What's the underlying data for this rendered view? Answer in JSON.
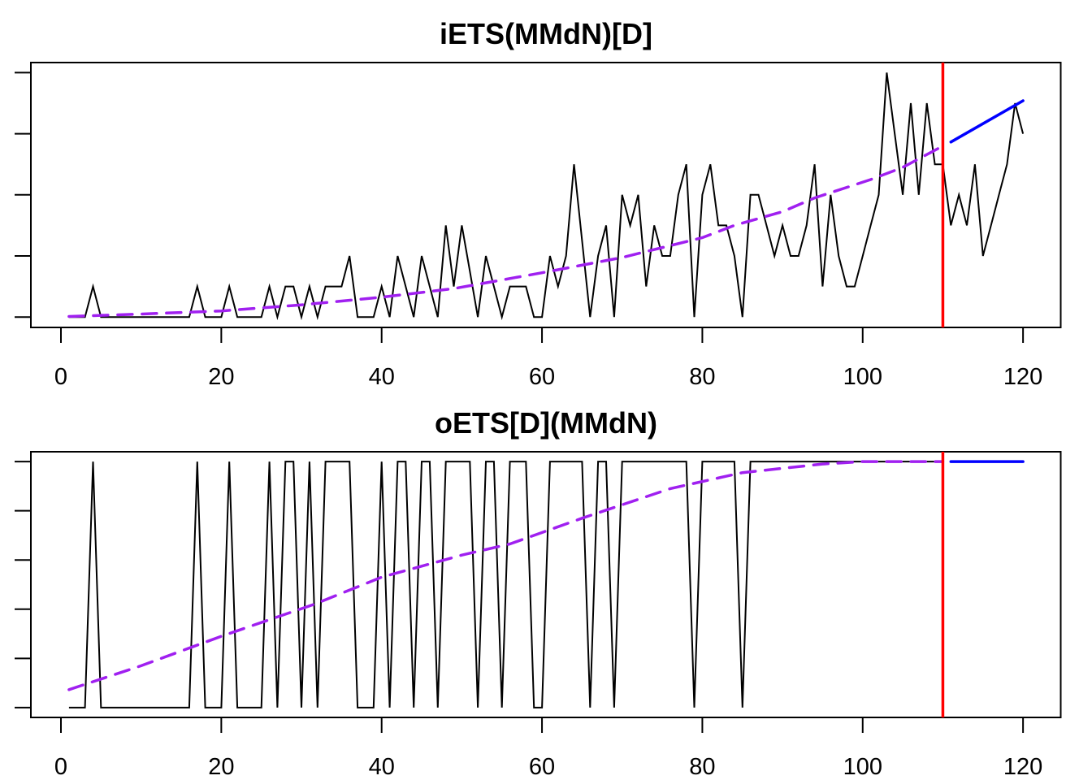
{
  "chart_data": [
    {
      "type": "line",
      "title": "iETS(MMdN)[D]",
      "xlabel": "",
      "ylabel": "",
      "xlim": [
        -3.75,
        124.7
      ],
      "ylim": [
        -0.34,
        8.33
      ],
      "x_ticks": [
        0,
        20,
        40,
        60,
        80,
        100,
        120
      ],
      "x_tick_labels": [
        "0",
        "20",
        "40",
        "60",
        "80",
        "100",
        "120"
      ],
      "y_ticks": [
        0,
        2,
        4,
        6,
        8
      ],
      "y_tick_labels": [
        "",
        "",
        "",
        "",
        ""
      ],
      "grid": false,
      "holdout_start": 110,
      "series": [
        {
          "name": "actuals",
          "style": "solid",
          "color": "#000000",
          "x_start": 1,
          "values": [
            0,
            0,
            0,
            1,
            0,
            0,
            0,
            0,
            0,
            0,
            0,
            0,
            0,
            0,
            0,
            0,
            1,
            0,
            0,
            0,
            1,
            0,
            0,
            0,
            0,
            1,
            0,
            1,
            1,
            0,
            1,
            0,
            1,
            1,
            1,
            2,
            0,
            0,
            0,
            1,
            0,
            2,
            1,
            0,
            2,
            1,
            0,
            3,
            1,
            3,
            1.5,
            0,
            2,
            1,
            0,
            1,
            1,
            1,
            0,
            0,
            2,
            1,
            2,
            5,
            2.5,
            0,
            2,
            3,
            0,
            4,
            3,
            4,
            1,
            3,
            2,
            2,
            4,
            5,
            0,
            4,
            5,
            3,
            3,
            2,
            0,
            4,
            4,
            3,
            2,
            3,
            2,
            2,
            3,
            5,
            1,
            4,
            2,
            1,
            1,
            2,
            3,
            4,
            8,
            6,
            4,
            7,
            4,
            7,
            5,
            5,
            3,
            4,
            3,
            5,
            2,
            3,
            4,
            5,
            7,
            6
          ]
        },
        {
          "name": "fitted",
          "style": "dashed",
          "color": "#a020f0",
          "points": [
            [
              1,
              0.02
            ],
            [
              10,
              0.1
            ],
            [
              20,
              0.2
            ],
            [
              30,
              0.4
            ],
            [
              40,
              0.65
            ],
            [
              49,
              0.93
            ],
            [
              60,
              1.45
            ],
            [
              70,
              1.95
            ],
            [
              80,
              2.6
            ],
            [
              84,
              3.0
            ],
            [
              90,
              3.45
            ],
            [
              94,
              3.9
            ],
            [
              101,
              4.5
            ],
            [
              105,
              4.9
            ],
            [
              110,
              5.6
            ]
          ]
        },
        {
          "name": "forecast",
          "style": "solid",
          "color": "#0000ff",
          "points": [
            [
              111,
              5.73
            ],
            [
              120,
              7.08
            ]
          ]
        }
      ],
      "holdout_line_color": "#ff0000"
    },
    {
      "type": "line",
      "title": "oETS[D](MMdN)",
      "xlabel": "",
      "ylabel": "",
      "xlim": [
        -3.75,
        124.7
      ],
      "ylim": [
        -0.04,
        1.04
      ],
      "x_ticks": [
        0,
        20,
        40,
        60,
        80,
        100,
        120
      ],
      "x_tick_labels": [
        "0",
        "20",
        "40",
        "60",
        "80",
        "100",
        "120"
      ],
      "y_ticks": [
        0,
        0.2,
        0.4,
        0.6,
        0.8,
        1.0
      ],
      "y_tick_labels": [
        "",
        "",
        "",
        "",
        "",
        ""
      ],
      "grid": false,
      "holdout_start": 110,
      "series": [
        {
          "name": "occurrence",
          "style": "solid",
          "color": "#000000",
          "x_start": 1,
          "values": [
            0,
            0,
            0,
            1,
            0,
            0,
            0,
            0,
            0,
            0,
            0,
            0,
            0,
            0,
            0,
            0,
            1,
            0,
            0,
            0,
            1,
            0,
            0,
            0,
            0,
            1,
            0,
            1,
            1,
            0,
            1,
            0,
            1,
            1,
            1,
            1,
            0,
            0,
            0,
            1,
            0,
            1,
            1,
            0,
            1,
            1,
            0,
            1,
            1,
            1,
            1,
            0,
            1,
            1,
            0,
            1,
            1,
            1,
            0,
            0,
            1,
            1,
            1,
            1,
            1,
            0,
            1,
            1,
            0,
            1,
            1,
            1,
            1,
            1,
            1,
            1,
            1,
            1,
            0,
            1,
            1,
            1,
            1,
            1,
            0,
            1,
            1,
            1,
            1,
            1,
            1,
            1,
            1,
            1,
            1,
            1,
            1,
            1,
            1,
            1,
            1,
            1,
            1,
            1,
            1,
            1,
            1,
            1,
            1,
            1
          ]
        },
        {
          "name": "fitted",
          "style": "dashed",
          "color": "#a020f0",
          "points": [
            [
              1,
              0.073
            ],
            [
              10,
              0.17
            ],
            [
              20,
              0.29
            ],
            [
              31.6,
              0.42
            ],
            [
              40,
              0.53
            ],
            [
              50,
              0.62
            ],
            [
              56,
              0.665
            ],
            [
              65,
              0.77
            ],
            [
              76,
              0.89
            ],
            [
              85,
              0.955
            ],
            [
              95,
              0.99
            ],
            [
              100,
              1.0
            ],
            [
              110,
              1.0
            ]
          ]
        },
        {
          "name": "forecast",
          "style": "solid",
          "color": "#0000ff",
          "points": [
            [
              111,
              1.0
            ],
            [
              120,
              1.0
            ]
          ]
        }
      ],
      "holdout_line_color": "#ff0000"
    }
  ]
}
